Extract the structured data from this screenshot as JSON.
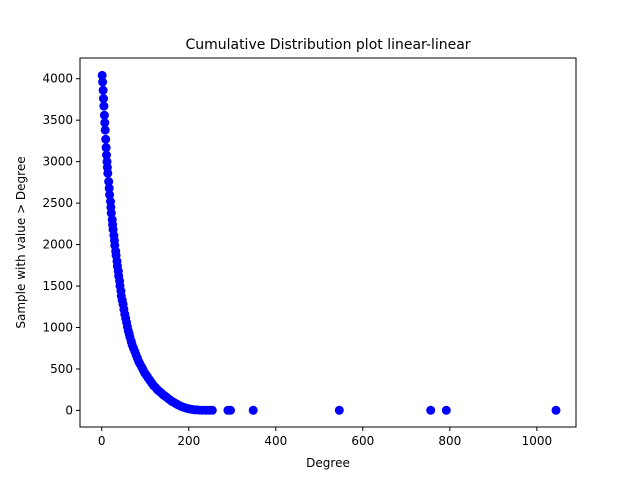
{
  "chart_data": {
    "type": "scatter",
    "title": "Cumulative Distribution plot linear-linear",
    "xlabel": "Degree",
    "ylabel": "Sample with value > Degree",
    "xlim": [
      -50,
      1090
    ],
    "ylim": [
      -200,
      4250
    ],
    "x_ticks": [
      0,
      200,
      400,
      600,
      800,
      1000
    ],
    "y_ticks": [
      0,
      500,
      1000,
      1500,
      2000,
      2500,
      3000,
      3500,
      4000
    ],
    "grid": false,
    "legend": "none",
    "marker_color": "#0000ff",
    "series": [
      {
        "points": [
          [
            1,
            4040
          ],
          [
            2,
            3960
          ],
          [
            3,
            3860
          ],
          [
            4,
            3760
          ],
          [
            5,
            3670
          ],
          [
            6,
            3560
          ],
          [
            7,
            3470
          ],
          [
            8,
            3380
          ],
          [
            9,
            3270
          ],
          [
            10,
            3170
          ],
          [
            11,
            3080
          ],
          [
            12,
            3000
          ],
          [
            13,
            2930
          ],
          [
            14,
            2860
          ],
          [
            16,
            2760
          ],
          [
            17,
            2680
          ],
          [
            18,
            2600
          ],
          [
            20,
            2520
          ],
          [
            21,
            2450
          ],
          [
            22,
            2380
          ],
          [
            24,
            2300
          ],
          [
            25,
            2240
          ],
          [
            26,
            2180
          ],
          [
            28,
            2110
          ],
          [
            29,
            2050
          ],
          [
            30,
            1990
          ],
          [
            32,
            1920
          ],
          [
            33,
            1870
          ],
          [
            35,
            1800
          ],
          [
            36,
            1740
          ],
          [
            38,
            1680
          ],
          [
            39,
            1620
          ],
          [
            41,
            1560
          ],
          [
            42,
            1500
          ],
          [
            44,
            1440
          ],
          [
            45,
            1380
          ],
          [
            47,
            1330
          ],
          [
            49,
            1280
          ],
          [
            51,
            1220
          ],
          [
            53,
            1160
          ],
          [
            55,
            1110
          ],
          [
            57,
            1060
          ],
          [
            59,
            1010
          ],
          [
            61,
            960
          ],
          [
            63,
            920
          ],
          [
            65,
            880
          ],
          [
            68,
            830
          ],
          [
            70,
            790
          ],
          [
            73,
            750
          ],
          [
            76,
            710
          ],
          [
            79,
            670
          ],
          [
            82,
            630
          ],
          [
            85,
            590
          ],
          [
            88,
            560
          ],
          [
            92,
            520
          ],
          [
            95,
            490
          ],
          [
            99,
            450
          ],
          [
            103,
            420
          ],
          [
            107,
            390
          ],
          [
            111,
            360
          ],
          [
            115,
            330
          ],
          [
            119,
            300
          ],
          [
            123,
            280
          ],
          [
            128,
            250
          ],
          [
            132,
            230
          ],
          [
            137,
            210
          ],
          [
            141,
            190
          ],
          [
            146,
            170
          ],
          [
            151,
            150
          ],
          [
            156,
            130
          ],
          [
            161,
            110
          ],
          [
            166,
            95
          ],
          [
            171,
            80
          ],
          [
            176,
            65
          ],
          [
            182,
            50
          ],
          [
            188,
            38
          ],
          [
            194,
            28
          ],
          [
            200,
            20
          ],
          [
            206,
            14
          ],
          [
            212,
            9
          ],
          [
            218,
            6
          ],
          [
            225,
            4
          ],
          [
            232,
            3
          ],
          [
            240,
            2
          ],
          [
            247,
            1
          ],
          [
            254,
            1
          ],
          [
            290,
            1
          ],
          [
            296,
            1
          ],
          [
            348,
            1
          ],
          [
            546,
            1
          ],
          [
            756,
            1
          ],
          [
            792,
            1
          ],
          [
            1044,
            1
          ]
        ]
      }
    ]
  }
}
